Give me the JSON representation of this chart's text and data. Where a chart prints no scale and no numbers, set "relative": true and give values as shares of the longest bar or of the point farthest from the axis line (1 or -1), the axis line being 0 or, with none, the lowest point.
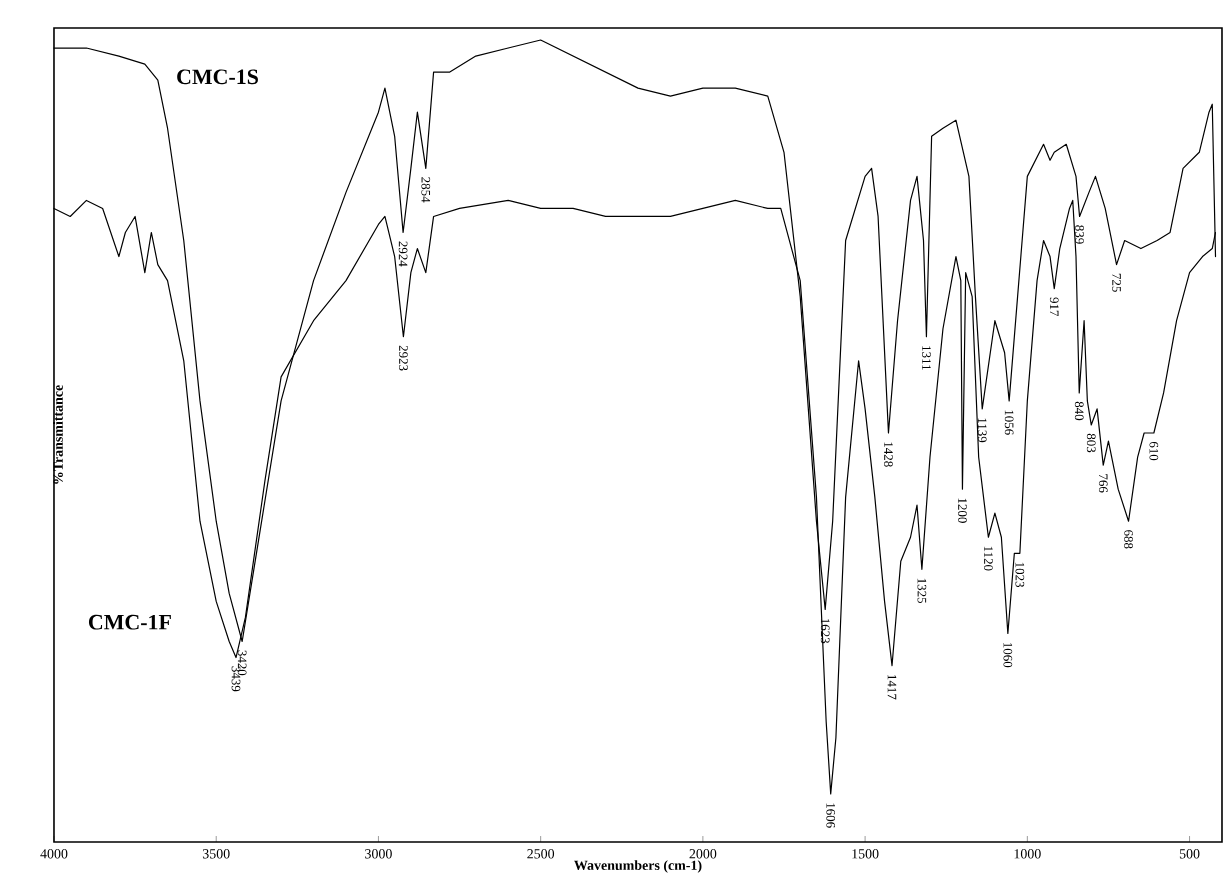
{
  "chart_data": {
    "type": "line",
    "relative": true,
    "xlabel": "Wavenumbers (cm-1)",
    "ylabel": "%Transmittance",
    "xlim": [
      4000,
      400
    ],
    "xticks": [
      4000,
      3500,
      3000,
      2500,
      2000,
      1500,
      1000,
      500
    ],
    "grid": false,
    "legend": false,
    "marker": "none",
    "line_style": "solid",
    "series": [
      {
        "name": "CMC-1S",
        "color": "#000000",
        "x": [
          4000,
          3900,
          3800,
          3720,
          3680,
          3650,
          3600,
          3550,
          3500,
          3460,
          3420,
          3380,
          3300,
          3200,
          3100,
          3000,
          2980,
          2950,
          2924,
          2900,
          2880,
          2854,
          2830,
          2780,
          2700,
          2600,
          2500,
          2400,
          2300,
          2200,
          2100,
          2000,
          1900,
          1800,
          1750,
          1700,
          1650,
          1623,
          1600,
          1560,
          1500,
          1480,
          1460,
          1428,
          1400,
          1360,
          1340,
          1320,
          1311,
          1295,
          1260,
          1220,
          1180,
          1160,
          1139,
          1100,
          1070,
          1056,
          1030,
          1000,
          950,
          930,
          917,
          880,
          850,
          839,
          810,
          790,
          760,
          725,
          700,
          650,
          600,
          560,
          520,
          470,
          440,
          430,
          420
        ],
        "values": [
          0.99,
          0.99,
          0.98,
          0.97,
          0.95,
          0.89,
          0.75,
          0.55,
          0.4,
          0.31,
          0.25,
          0.35,
          0.55,
          0.7,
          0.81,
          0.91,
          0.94,
          0.88,
          0.76,
          0.84,
          0.91,
          0.84,
          0.96,
          0.96,
          0.98,
          0.99,
          1.0,
          0.98,
          0.96,
          0.94,
          0.93,
          0.94,
          0.94,
          0.93,
          0.86,
          0.68,
          0.4,
          0.29,
          0.4,
          0.75,
          0.83,
          0.84,
          0.78,
          0.51,
          0.65,
          0.8,
          0.83,
          0.75,
          0.63,
          0.88,
          0.89,
          0.9,
          0.83,
          0.68,
          0.54,
          0.65,
          0.61,
          0.55,
          0.68,
          0.83,
          0.87,
          0.85,
          0.86,
          0.87,
          0.83,
          0.78,
          0.81,
          0.83,
          0.79,
          0.72,
          0.75,
          0.74,
          0.75,
          0.76,
          0.84,
          0.86,
          0.91,
          0.92,
          0.73
        ]
      },
      {
        "name": "CMC-1F",
        "color": "#000000",
        "x": [
          4000,
          3950,
          3900,
          3850,
          3800,
          3780,
          3750,
          3720,
          3700,
          3680,
          3650,
          3600,
          3550,
          3500,
          3460,
          3439,
          3410,
          3350,
          3300,
          3200,
          3100,
          3000,
          2980,
          2950,
          2923,
          2900,
          2880,
          2854,
          2830,
          2750,
          2600,
          2500,
          2400,
          2300,
          2200,
          2100,
          2000,
          1900,
          1800,
          1760,
          1700,
          1650,
          1620,
          1606,
          1590,
          1560,
          1520,
          1500,
          1470,
          1440,
          1417,
          1390,
          1360,
          1340,
          1325,
          1300,
          1260,
          1220,
          1205,
          1200,
          1190,
          1170,
          1150,
          1120,
          1100,
          1080,
          1060,
          1040,
          1023,
          1000,
          970,
          950,
          930,
          917,
          900,
          870,
          860,
          850,
          840,
          825,
          815,
          803,
          785,
          766,
          750,
          720,
          688,
          660,
          640,
          610,
          580,
          540,
          500,
          460,
          430,
          420
        ],
        "values": [
          0.79,
          0.78,
          0.8,
          0.79,
          0.73,
          0.76,
          0.78,
          0.71,
          0.76,
          0.72,
          0.7,
          0.6,
          0.4,
          0.3,
          0.25,
          0.23,
          0.28,
          0.45,
          0.58,
          0.65,
          0.7,
          0.77,
          0.78,
          0.73,
          0.63,
          0.71,
          0.74,
          0.71,
          0.78,
          0.79,
          0.8,
          0.79,
          0.79,
          0.78,
          0.78,
          0.78,
          0.79,
          0.8,
          0.79,
          0.79,
          0.7,
          0.43,
          0.15,
          0.06,
          0.13,
          0.43,
          0.6,
          0.54,
          0.43,
          0.3,
          0.22,
          0.35,
          0.38,
          0.42,
          0.34,
          0.48,
          0.64,
          0.73,
          0.7,
          0.44,
          0.71,
          0.68,
          0.48,
          0.38,
          0.41,
          0.38,
          0.26,
          0.36,
          0.36,
          0.55,
          0.7,
          0.75,
          0.73,
          0.69,
          0.74,
          0.79,
          0.8,
          0.73,
          0.56,
          0.65,
          0.55,
          0.52,
          0.54,
          0.47,
          0.5,
          0.44,
          0.4,
          0.48,
          0.51,
          0.51,
          0.56,
          0.65,
          0.71,
          0.73,
          0.74,
          0.76
        ]
      }
    ],
    "annotations": [
      {
        "text": "3439",
        "x": 3439,
        "y": 0.23
      },
      {
        "text": "3420",
        "x": 3420,
        "y": 0.25
      },
      {
        "text": "2923",
        "x": 2923,
        "y": 0.63
      },
      {
        "text": "2924",
        "x": 2924,
        "y": 0.76
      },
      {
        "text": "2854",
        "x": 2854,
        "y": 0.84
      },
      {
        "text": "1623",
        "x": 1623,
        "y": 0.29
      },
      {
        "text": "1606",
        "x": 1606,
        "y": 0.06
      },
      {
        "text": "1428",
        "x": 1428,
        "y": 0.51
      },
      {
        "text": "1417",
        "x": 1417,
        "y": 0.22
      },
      {
        "text": "1325",
        "x": 1325,
        "y": 0.34
      },
      {
        "text": "1311",
        "x": 1311,
        "y": 0.63
      },
      {
        "text": "1200",
        "x": 1200,
        "y": 0.44
      },
      {
        "text": "1139",
        "x": 1139,
        "y": 0.54
      },
      {
        "text": "1120",
        "x": 1120,
        "y": 0.38
      },
      {
        "text": "1060",
        "x": 1060,
        "y": 0.26
      },
      {
        "text": "1056",
        "x": 1056,
        "y": 0.55
      },
      {
        "text": "1023",
        "x": 1023,
        "y": 0.36
      },
      {
        "text": "917",
        "x": 917,
        "y": 0.69
      },
      {
        "text": "840",
        "x": 840,
        "y": 0.56
      },
      {
        "text": "839",
        "x": 839,
        "y": 0.78
      },
      {
        "text": "803",
        "x": 803,
        "y": 0.52
      },
      {
        "text": "766",
        "x": 766,
        "y": 0.47
      },
      {
        "text": "725",
        "x": 725,
        "y": 0.72
      },
      {
        "text": "688",
        "x": 688,
        "y": 0.4
      },
      {
        "text": "610",
        "x": 610,
        "y": 0.51
      }
    ]
  }
}
